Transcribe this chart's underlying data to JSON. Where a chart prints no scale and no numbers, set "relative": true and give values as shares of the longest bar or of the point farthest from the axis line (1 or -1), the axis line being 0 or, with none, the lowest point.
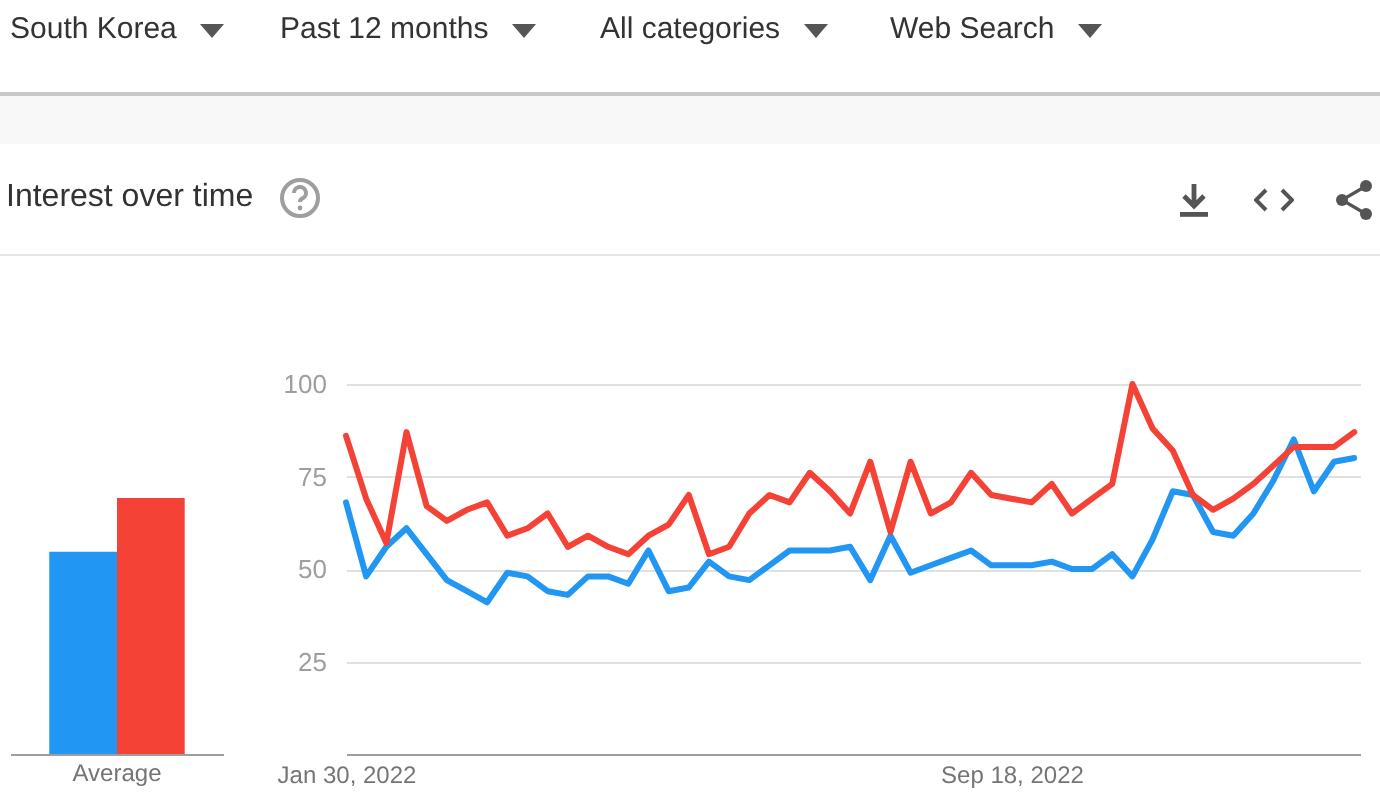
{
  "chart_data": [
    {
      "type": "bar",
      "title": "Interest over time",
      "annotations": [
        "South Korea",
        "Past 12 months",
        "All categories",
        "Web Search"
      ],
      "categories": [
        "Average"
      ],
      "relative": true,
      "series": [
        {
          "color": "#2196f3",
          "values": [
            0.79
          ]
        },
        {
          "color": "#f44336",
          "values": [
            1
          ]
        }
      ]
    },
    {
      "type": "line",
      "grid": "y",
      "x": [
        "2022-01-30",
        "2022-02-06",
        "2022-02-13",
        "2022-02-20",
        "2022-02-27",
        "2022-03-06",
        "2022-03-13",
        "2022-03-20",
        "2022-03-27",
        "2022-04-03",
        "2022-04-10",
        "2022-04-17",
        "2022-04-24",
        "2022-05-01",
        "2022-05-08",
        "2022-05-15",
        "2022-05-22",
        "2022-05-29",
        "2022-06-05",
        "2022-06-12",
        "2022-06-19",
        "2022-06-26",
        "2022-07-03",
        "2022-07-10",
        "2022-07-17",
        "2022-07-24",
        "2022-07-31",
        "2022-08-07",
        "2022-08-14",
        "2022-08-21",
        "2022-08-28",
        "2022-09-04",
        "2022-09-11",
        "2022-09-18",
        "2022-09-25",
        "2022-10-02",
        "2022-10-09",
        "2022-10-16",
        "2022-10-23",
        "2022-10-30",
        "2022-11-06",
        "2022-11-13",
        "2022-11-20",
        "2022-11-27",
        "2022-12-04",
        "2022-12-11",
        "2022-12-18",
        "2022-12-25",
        "2023-01-01",
        "2023-01-08",
        "2023-01-15"
      ],
      "xlim": [
        "2022-01-30",
        "2023-01-17"
      ],
      "xticks": [
        {
          "value": "2022-01-30",
          "label": "Jan 30, 2022"
        },
        {
          "value": "2022-09-18",
          "label": "Sep 18, 2022"
        }
      ],
      "ylim": [
        0,
        100
      ],
      "yticks": [
        25,
        50,
        75,
        100
      ],
      "series": [
        {
          "color": "#2196f3",
          "values": [
            68,
            48,
            56,
            61,
            54,
            47,
            44,
            41,
            49,
            48,
            44,
            43,
            48,
            48,
            46,
            55,
            44,
            45,
            52,
            48,
            47,
            51,
            55,
            55,
            55,
            56,
            47,
            59,
            49,
            51,
            53,
            55,
            51,
            51,
            51,
            52,
            50,
            50,
            54,
            48,
            58,
            71,
            70,
            60,
            59,
            65,
            74,
            85,
            71,
            79,
            80
          ]
        },
        {
          "color": "#f44336",
          "values": [
            86,
            69,
            57,
            87,
            67,
            63,
            66,
            68,
            59,
            61,
            65,
            56,
            59,
            56,
            54,
            59,
            62,
            70,
            54,
            56,
            65,
            70,
            68,
            76,
            71,
            65,
            79,
            60,
            79,
            65,
            68,
            76,
            70,
            69,
            68,
            73,
            65,
            69,
            73,
            100,
            88,
            82,
            70,
            66,
            69,
            73,
            78,
            83,
            83,
            83,
            87
          ]
        }
      ]
    }
  ]
}
